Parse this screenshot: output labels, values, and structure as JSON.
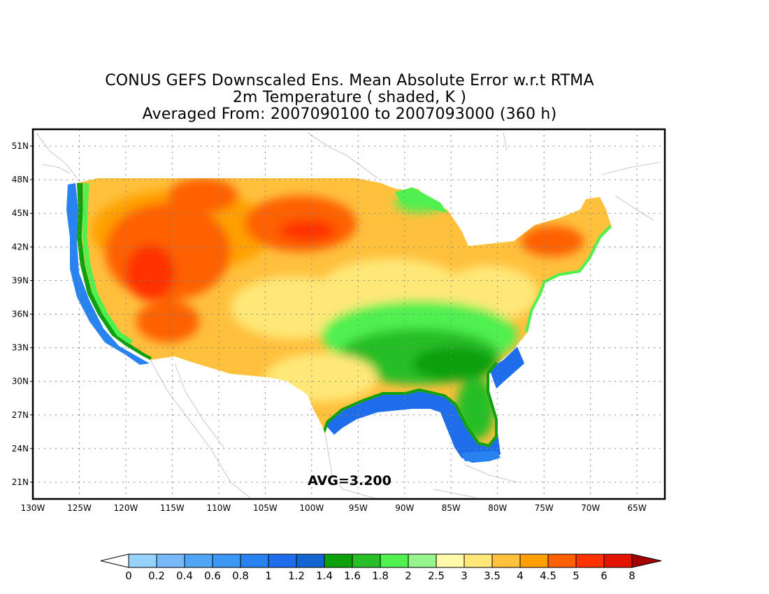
{
  "title": {
    "line1": "CONUS GEFS Downscaled Ens. Mean Absolute Error w.r.t RTMA",
    "line2": "2m Temperature ( shaded, K )",
    "line3": "Averaged From: 2007090100 to 2007093000 (360 h)"
  },
  "map": {
    "lon_range": [
      -130,
      -62
    ],
    "lat_range": [
      19.5,
      52.5
    ],
    "lat_ticks": [
      "51N",
      "48N",
      "45N",
      "42N",
      "39N",
      "36N",
      "33N",
      "30N",
      "27N",
      "24N",
      "21N"
    ],
    "lon_ticks": [
      "130W",
      "125W",
      "120W",
      "115W",
      "110W",
      "105W",
      "100W",
      "95W",
      "90W",
      "85W",
      "80W",
      "75W",
      "70W",
      "65W"
    ],
    "grid": true,
    "avg_label": "AVG=3.200"
  },
  "colorbar": {
    "labels": [
      "0",
      "0.2",
      "0.4",
      "0.6",
      "0.8",
      "1",
      "1.2",
      "1.4",
      "1.6",
      "1.8",
      "2",
      "2.5",
      "3",
      "3.5",
      "4",
      "4.5",
      "5",
      "6",
      "8"
    ],
    "colors": [
      "#96d2fa",
      "#78b9fa",
      "#50a5f5",
      "#3c97f5",
      "#2882f0",
      "#1e6eeb",
      "#1464d2",
      "#0fa00f",
      "#28be28",
      "#50f050",
      "#96f58c",
      "#fffaaa",
      "#ffe878",
      "#ffc03c",
      "#ffa000",
      "#ff6000",
      "#ff3200",
      "#e11400",
      "#c00000"
    ],
    "lower_end_color": "#ffffff",
    "upper_end_color": "#a50000"
  },
  "fields": {
    "land_base": "#ffc03c",
    "ocean": "#1e6eeb",
    "ocean_outer": "#2882f0",
    "coast_green": "#0fa00f",
    "coast_light": "#50f050",
    "southeast_green": "#28be28",
    "plains_yellow": "#ffe878",
    "light_yellow": "#fffaaa",
    "interior_orange": "#ffa000",
    "hot": "#ff6000",
    "hotter": "#ff3200"
  }
}
